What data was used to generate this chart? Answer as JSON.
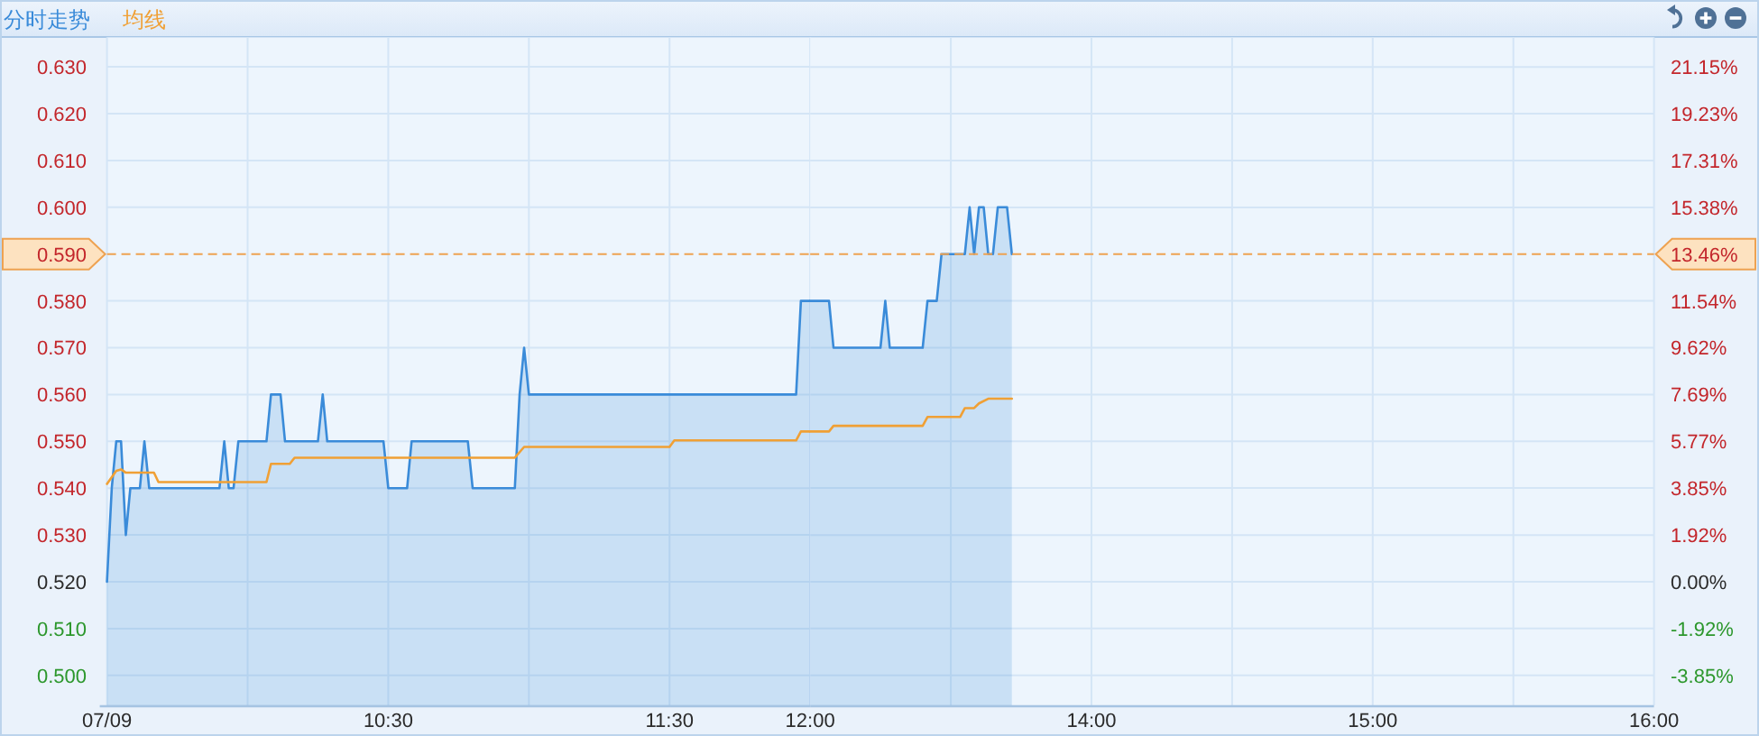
{
  "chart_data": [
    {
      "type": "area",
      "legend": "top left",
      "grid": true,
      "xlim": [
        9.5,
        12
      ],
      "xticks": [
        {
          "value": 9.5,
          "label": "07/09"
        },
        {
          "value": 10,
          "label": null
        },
        {
          "value": 10.5,
          "label": "10:30"
        },
        {
          "value": 11,
          "label": null
        },
        {
          "value": 11.5,
          "label": "11:30"
        },
        {
          "value": 12,
          "label": "12:00"
        }
      ],
      "ylim": [
        0.4936,
        0.6363
      ],
      "yticks": [
        {
          "value": 0.5,
          "label": "0.500"
        },
        {
          "value": 0.51,
          "label": "0.510"
        },
        {
          "value": 0.52,
          "label": "0.520"
        },
        {
          "value": 0.53,
          "label": "0.530"
        },
        {
          "value": 0.54,
          "label": "0.540"
        },
        {
          "value": 0.55,
          "label": "0.550"
        },
        {
          "value": 0.56,
          "label": "0.560"
        },
        {
          "value": 0.57,
          "label": "0.570"
        },
        {
          "value": 0.58,
          "label": "0.580"
        },
        {
          "value": 0.6,
          "label": "0.600"
        },
        {
          "value": 0.61,
          "label": "0.610"
        },
        {
          "value": 0.62,
          "label": "0.620"
        },
        {
          "value": 0.63,
          "label": "0.630"
        }
      ],
      "ref_lines": [
        {
          "axis": "y",
          "value": 0.59,
          "label": "0.590",
          "color": "#eea251",
          "line_style": "dashed"
        }
      ],
      "series": [
        {
          "name": "分时走势",
          "color": "#3a8bd9",
          "x": [
            9.5,
            9.517,
            9.533,
            9.55,
            9.567,
            9.583,
            9.617,
            9.633,
            9.65,
            9.9,
            9.917,
            9.933,
            9.95,
            9.967,
            10.067,
            10.083,
            10.117,
            10.133,
            10.25,
            10.267,
            10.283,
            10.483,
            10.5,
            10.567,
            10.583,
            10.783,
            10.8,
            10.95,
            10.967,
            10.983,
            11.0,
            11.95,
            11.967,
            12.0
          ],
          "values": [
            0.52,
            0.54,
            0.55,
            0.55,
            0.53,
            0.54,
            0.54,
            0.55,
            0.54,
            0.54,
            0.55,
            0.54,
            0.54,
            0.55,
            0.55,
            0.56,
            0.56,
            0.55,
            0.55,
            0.56,
            0.55,
            0.55,
            0.54,
            0.54,
            0.55,
            0.55,
            0.54,
            0.54,
            0.56,
            0.57,
            0.56,
            0.56,
            0.58,
            0.58
          ]
        },
        {
          "name": "均线",
          "type": "line",
          "color": "#f0a035",
          "x": [
            9.5,
            9.533,
            9.55,
            9.567,
            9.667,
            9.683,
            10.067,
            10.083,
            10.15,
            10.167,
            10.95,
            10.983,
            11.5,
            11.517,
            11.95,
            11.967,
            12.0
          ],
          "values": [
            0.5409,
            0.5437,
            0.544,
            0.5433,
            0.5433,
            0.5413,
            0.5413,
            0.5452,
            0.5452,
            0.5465,
            0.5465,
            0.5488,
            0.5488,
            0.5502,
            0.5502,
            0.5521,
            0.5521
          ]
        }
      ]
    },
    {
      "type": "area",
      "grid": true,
      "xlim": [
        13,
        16
      ],
      "xticks": [
        {
          "value": 13.5,
          "label": null
        },
        {
          "value": 14,
          "label": "14:00"
        },
        {
          "value": 14.5,
          "label": null
        },
        {
          "value": 15,
          "label": "15:00"
        },
        {
          "value": 15.5,
          "label": null
        },
        {
          "value": 16,
          "label": "16:00"
        }
      ],
      "ylim": [
        0.4936,
        0.6363
      ],
      "y2lim": [
        -5.08,
        22.37
      ],
      "y2ticks": [
        {
          "value": -3.85,
          "label": "-3.85%"
        },
        {
          "value": -1.92,
          "label": "-1.92%"
        },
        {
          "value": 0,
          "label": "0.00%"
        },
        {
          "value": 1.92,
          "label": "1.92%"
        },
        {
          "value": 3.85,
          "label": "3.85%"
        },
        {
          "value": 5.77,
          "label": "5.77%"
        },
        {
          "value": 7.69,
          "label": "7.69%"
        },
        {
          "value": 9.62,
          "label": "9.62%"
        },
        {
          "value": 11.54,
          "label": "11.54%"
        },
        {
          "value": 15.38,
          "label": "15.38%"
        },
        {
          "value": 17.31,
          "label": "17.31%"
        },
        {
          "value": 19.23,
          "label": "19.23%"
        },
        {
          "value": 21.15,
          "label": "21.15%"
        }
      ],
      "ref_lines": [
        {
          "axis": "y2",
          "value": 13.46,
          "label": "13.46%",
          "color": "#eea251",
          "line_style": "dashed"
        }
      ],
      "series": [
        {
          "color": "#3a8bd9",
          "x": [
            13.0,
            13.067,
            13.083,
            13.25,
            13.267,
            13.283,
            13.4,
            13.417,
            13.45,
            13.467,
            13.55,
            13.567,
            13.583,
            13.6,
            13.617,
            13.633,
            13.65,
            13.667,
            13.7,
            13.717
          ],
          "values": [
            0.58,
            0.58,
            0.57,
            0.57,
            0.58,
            0.57,
            0.57,
            0.58,
            0.58,
            0.59,
            0.59,
            0.6,
            0.59,
            0.6,
            0.6,
            0.59,
            0.59,
            0.6,
            0.6,
            0.59
          ]
        },
        {
          "type": "line",
          "color": "#f0a035",
          "x": [
            13.0,
            13.067,
            13.083,
            13.4,
            13.417,
            13.533,
            13.55,
            13.583,
            13.6,
            13.633,
            13.717
          ],
          "values": [
            0.5521,
            0.5521,
            0.5533,
            0.5533,
            0.5552,
            0.5552,
            0.5571,
            0.5571,
            0.5581,
            0.5591,
            0.5591
          ]
        }
      ]
    }
  ]
}
